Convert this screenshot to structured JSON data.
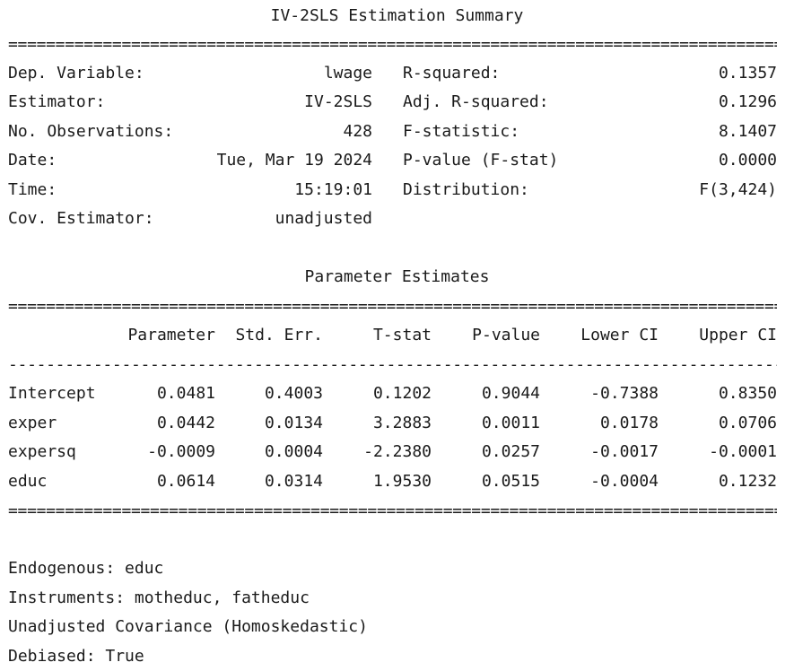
{
  "title": "IV-2SLS Estimation Summary",
  "rule_double": "==========================================================================================",
  "rule_single": "------------------------------------------------------------------------------------------",
  "summary": {
    "left": [
      {
        "label": "Dep. Variable:",
        "value": "lwage"
      },
      {
        "label": "Estimator:",
        "value": "IV-2SLS"
      },
      {
        "label": "No. Observations:",
        "value": "428"
      },
      {
        "label": "Date:",
        "value": "Tue, Mar 19 2024"
      },
      {
        "label": "Time:",
        "value": "15:19:01"
      },
      {
        "label": "Cov. Estimator:",
        "value": "unadjusted"
      }
    ],
    "right": [
      {
        "label": "R-squared:",
        "value": "0.1357"
      },
      {
        "label": "Adj. R-squared:",
        "value": "0.1296"
      },
      {
        "label": "F-statistic:",
        "value": "8.1407"
      },
      {
        "label": "P-value (F-stat)",
        "value": "0.0000"
      },
      {
        "label": "Distribution:",
        "value": "F(3,424)"
      }
    ]
  },
  "param_title": "Parameter Estimates",
  "table": {
    "headers": [
      "Parameter",
      "Std. Err.",
      "T-stat",
      "P-value",
      "Lower CI",
      "Upper CI"
    ],
    "rows": [
      {
        "name": "Intercept",
        "values": [
          "0.0481",
          "0.4003",
          "0.1202",
          "0.9044",
          "-0.7388",
          "0.8350"
        ]
      },
      {
        "name": "exper",
        "values": [
          "0.0442",
          "0.0134",
          "3.2883",
          "0.0011",
          "0.0178",
          "0.0706"
        ]
      },
      {
        "name": "expersq",
        "values": [
          "-0.0009",
          "0.0004",
          "-2.2380",
          "0.0257",
          "-0.0017",
          "-0.0001"
        ]
      },
      {
        "name": "educ",
        "values": [
          "0.0614",
          "0.0314",
          "1.9530",
          "0.0515",
          "-0.0004",
          "0.1232"
        ]
      }
    ]
  },
  "footer": [
    "Endogenous: educ",
    "Instruments: motheduc, fatheduc",
    "Unadjusted Covariance (Homoskedastic)",
    "Debiased: True"
  ]
}
